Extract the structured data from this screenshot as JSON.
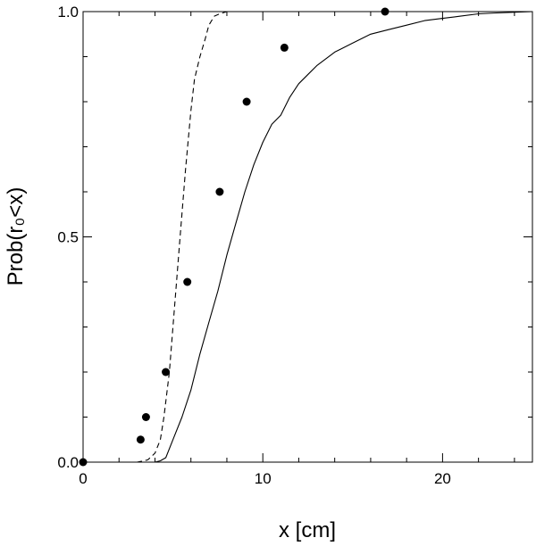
{
  "chart_data": {
    "type": "line",
    "title": "",
    "xlabel": "x [cm]",
    "ylabel": "Prob(r₀<x)",
    "xlim": [
      0,
      25
    ],
    "ylim": [
      0,
      1
    ],
    "grid": false,
    "x_ticks": [
      {
        "value": 0,
        "label": "0"
      },
      {
        "value": 10,
        "label": "10"
      },
      {
        "value": 20,
        "label": "20"
      }
    ],
    "y_ticks": [
      {
        "value": 0,
        "label": "0.0"
      },
      {
        "value": 0.5,
        "label": "0.5"
      },
      {
        "value": 1,
        "label": "1.0"
      }
    ],
    "series": [
      {
        "style": "dots",
        "x": [
          0.0,
          3.2,
          3.5,
          4.6,
          5.8,
          7.6,
          9.1,
          11.2,
          16.8
        ],
        "y": [
          0.0,
          0.05,
          0.1,
          0.2,
          0.4,
          0.6,
          0.8,
          0.92,
          1.0
        ]
      },
      {
        "style": "dashed",
        "x": [
          0.0,
          3.0,
          3.6,
          4.0,
          4.3,
          4.5,
          4.8,
          5.1,
          5.4,
          5.7,
          6.0,
          6.2,
          6.5,
          6.8,
          7.0,
          7.3,
          7.6,
          8.0,
          25.0
        ],
        "y": [
          0.0,
          0.0,
          0.005,
          0.02,
          0.05,
          0.1,
          0.2,
          0.35,
          0.5,
          0.65,
          0.78,
          0.85,
          0.9,
          0.94,
          0.97,
          0.99,
          0.995,
          1.0,
          1.0
        ]
      },
      {
        "style": "solid",
        "x": [
          0.0,
          3.0,
          4.0,
          4.3,
          4.6,
          5.0,
          5.5,
          6.0,
          6.5,
          7.0,
          7.5,
          8.0,
          8.5,
          9.0,
          9.5,
          10.0,
          10.5,
          11.0,
          11.5,
          12.0,
          12.5,
          13.0,
          14.0,
          15.0,
          16.0,
          17.0,
          18.0,
          19.0,
          20.0,
          21.0,
          22.0,
          23.0,
          25.0
        ],
        "y": [
          0.0,
          0.0,
          0.0,
          0.003,
          0.01,
          0.05,
          0.1,
          0.16,
          0.24,
          0.31,
          0.38,
          0.46,
          0.53,
          0.6,
          0.66,
          0.71,
          0.75,
          0.77,
          0.81,
          0.84,
          0.86,
          0.88,
          0.91,
          0.93,
          0.95,
          0.96,
          0.97,
          0.98,
          0.985,
          0.99,
          0.995,
          0.997,
          1.0
        ]
      }
    ]
  }
}
